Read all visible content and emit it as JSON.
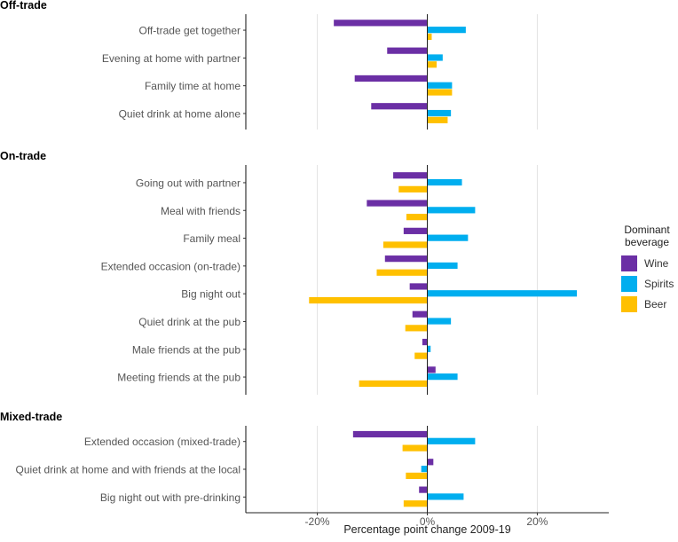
{
  "chart_data": {
    "type": "bar",
    "orientation": "horizontal",
    "xlabel": "Percentage point change 2009-19",
    "xlim": [
      -33,
      33
    ],
    "xticks": [
      -20,
      0,
      20
    ],
    "xtick_labels": [
      "-20%",
      "0%",
      "20%"
    ],
    "grid": true,
    "legend": {
      "title_lines": [
        "Dominant",
        "beverage"
      ],
      "position": "right",
      "entries": [
        {
          "name": "Wine",
          "color": "#6b2fa5"
        },
        {
          "name": "Spirits",
          "color": "#00aeef"
        },
        {
          "name": "Beer",
          "color": "#ffc000"
        }
      ]
    },
    "series_order": [
      "Wine",
      "Spirits",
      "Beer"
    ],
    "panels": [
      {
        "title": "Off-trade",
        "categories": [
          {
            "label": "Off-trade get together",
            "Wine": -17,
            "Spirits": 7,
            "Beer": 0.8
          },
          {
            "label": "Evening at home with partner",
            "Wine": -7.3,
            "Spirits": 2.8,
            "Beer": 1.7
          },
          {
            "label": "Family time at home",
            "Wine": -13.2,
            "Spirits": 4.5,
            "Beer": 4.5
          },
          {
            "label": "Quiet drink at home alone",
            "Wine": -10.2,
            "Spirits": 4.3,
            "Beer": 3.7
          }
        ]
      },
      {
        "title": "On-trade",
        "categories": [
          {
            "label": "Going out with partner",
            "Wine": -6.2,
            "Spirits": 6.3,
            "Beer": -5.2
          },
          {
            "label": "Meal with friends",
            "Wine": -11,
            "Spirits": 8.7,
            "Beer": -3.8
          },
          {
            "label": "Family meal",
            "Wine": -4.3,
            "Spirits": 7.4,
            "Beer": -8
          },
          {
            "label": "Extended occasion (on-trade)",
            "Wine": -7.7,
            "Spirits": 5.5,
            "Beer": -9.2
          },
          {
            "label": "Big night out",
            "Wine": -3.2,
            "Spirits": 27.2,
            "Beer": -21.5
          },
          {
            "label": "Quiet drink at the pub",
            "Wine": -2.7,
            "Spirits": 4.3,
            "Beer": -4
          },
          {
            "label": "Male friends at the pub",
            "Wine": -0.9,
            "Spirits": 0.6,
            "Beer": -2.3
          },
          {
            "label": "Meeting friends at the pub",
            "Wine": 1.5,
            "Spirits": 5.5,
            "Beer": -12.4
          }
        ]
      },
      {
        "title": "Mixed-trade",
        "categories": [
          {
            "label": "Extended occasion (mixed-trade)",
            "Wine": -13.5,
            "Spirits": 8.7,
            "Beer": -4.5
          },
          {
            "label": "Quiet drink at home and with friends at the local",
            "Wine": 1.1,
            "Spirits": -1.1,
            "Beer": -3.9
          },
          {
            "label": "Big night out with pre-drinking",
            "Wine": -1.5,
            "Spirits": 6.6,
            "Beer": -4.3
          }
        ]
      }
    ]
  }
}
